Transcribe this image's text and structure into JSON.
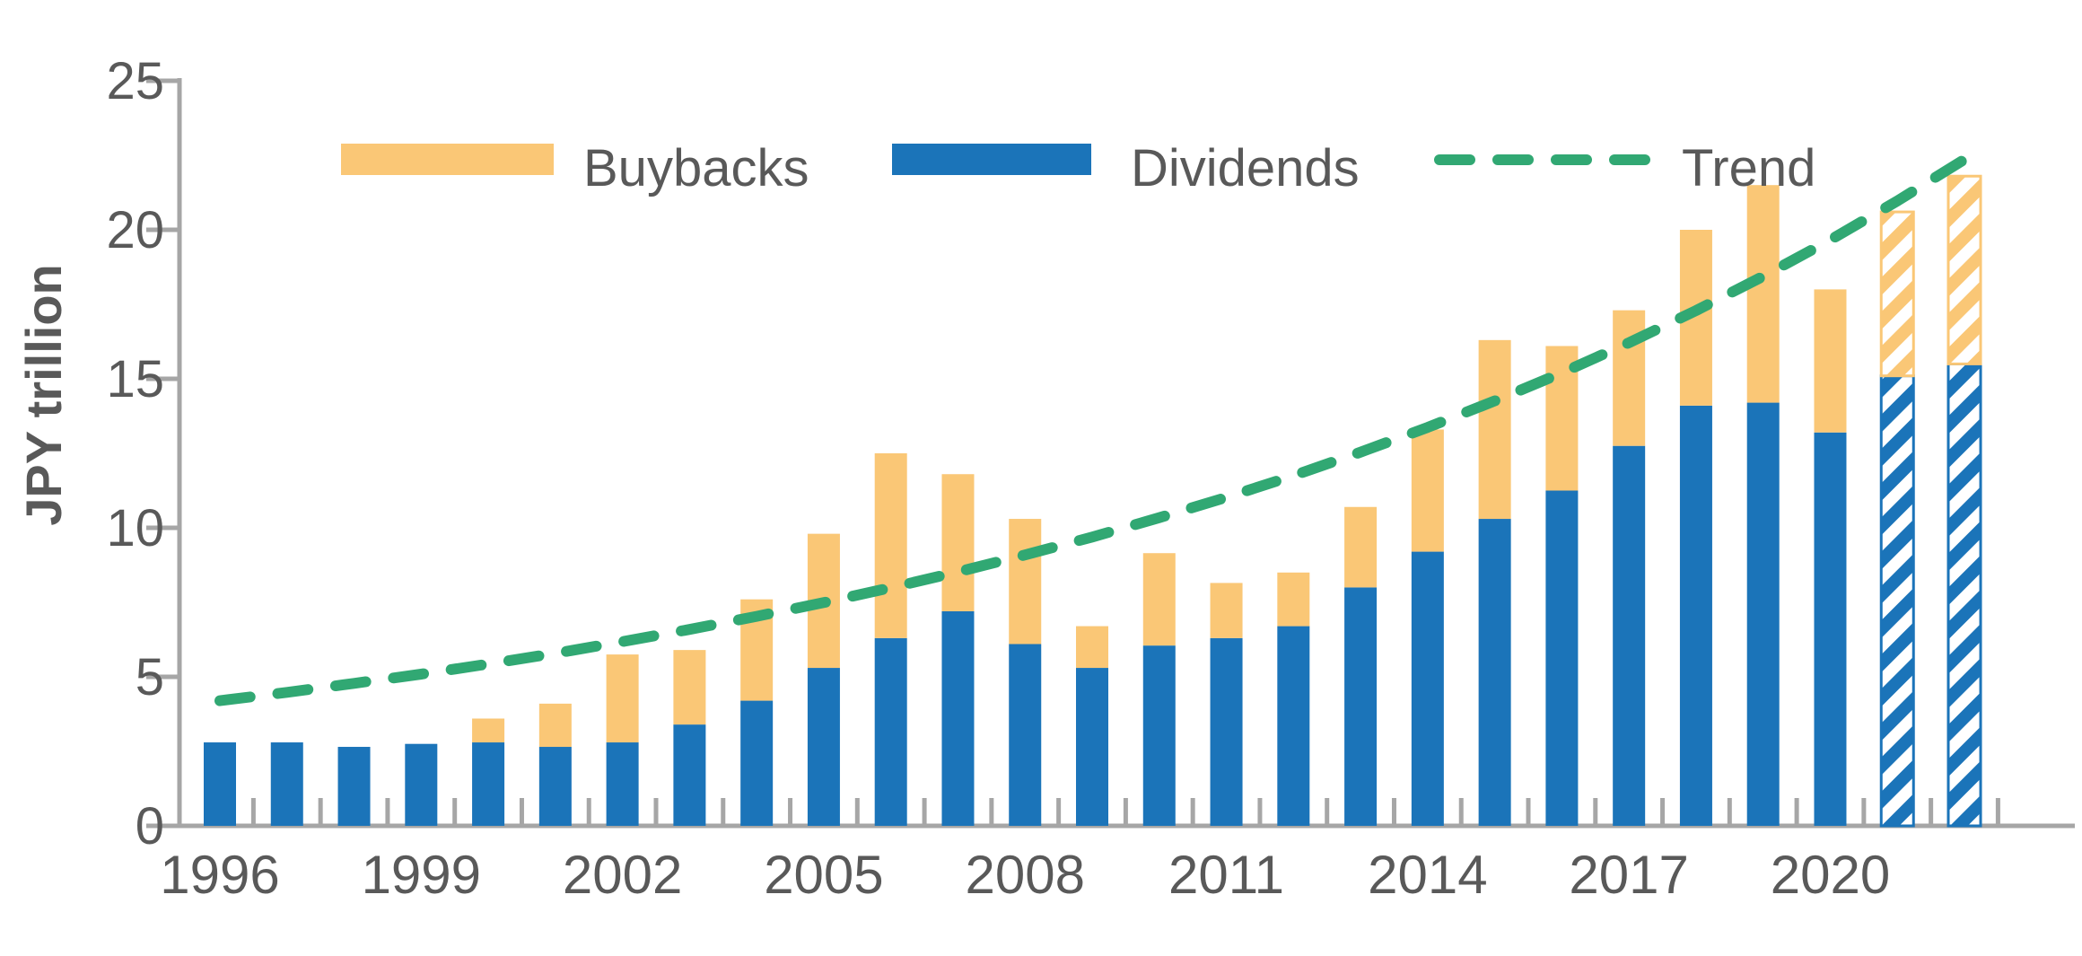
{
  "chart_data": {
    "type": "bar",
    "stacked": true,
    "title": "",
    "ylabel": "JPY trillion",
    "xlabel": "",
    "ylim": [
      0,
      25
    ],
    "y_ticks": [
      0,
      5,
      10,
      15,
      20,
      25
    ],
    "x_tick_labels": [
      "1996",
      "1999",
      "2002",
      "2005",
      "2008",
      "2011",
      "2014",
      "2017",
      "2020"
    ],
    "grid": "off",
    "legend_position": "top",
    "legend": {
      "buybacks": "Buybacks",
      "dividends": "Dividends",
      "trend": "Trend"
    },
    "categories": [
      1996,
      1997,
      1998,
      1999,
      2000,
      2001,
      2002,
      2003,
      2004,
      2005,
      2006,
      2007,
      2008,
      2009,
      2010,
      2011,
      2012,
      2013,
      2014,
      2015,
      2016,
      2017,
      2018,
      2019,
      2020,
      2021,
      2022
    ],
    "series": [
      {
        "name": "Dividends",
        "color": "#1b74b9",
        "values": [
          2.8,
          2.8,
          2.65,
          2.75,
          2.8,
          2.65,
          2.8,
          3.4,
          4.2,
          5.3,
          6.3,
          7.2,
          6.1,
          5.3,
          6.05,
          6.3,
          6.7,
          8.0,
          9.2,
          10.3,
          11.25,
          12.75,
          14.1,
          14.2,
          13.2,
          15.1,
          15.5
        ]
      },
      {
        "name": "Buybacks",
        "color": "#fac776",
        "values": [
          0,
          0,
          0,
          0,
          0.8,
          1.45,
          2.95,
          2.5,
          3.4,
          4.5,
          6.2,
          4.6,
          4.2,
          1.4,
          3.1,
          1.85,
          1.8,
          2.7,
          4.1,
          6.0,
          4.85,
          4.55,
          5.9,
          7.3,
          4.8,
          5.5,
          6.3
        ]
      }
    ],
    "trend_line": {
      "name": "Trend",
      "color": "#31a873",
      "style": "dashed",
      "values": [
        4.2,
        4.48,
        4.78,
        5.09,
        5.43,
        5.79,
        6.18,
        6.59,
        7.03,
        7.49,
        7.99,
        8.52,
        9.09,
        9.69,
        10.34,
        11.02,
        11.75,
        12.54,
        13.37,
        14.26,
        15.2,
        16.21,
        17.29,
        18.44,
        19.66,
        20.97,
        22.36
      ]
    },
    "forecast_years": [
      2021,
      2022
    ],
    "forecast_style": "diagonal-hatch"
  },
  "colors": {
    "dividends_blue": "#1b74b9",
    "buybacks_yellow": "#fac776",
    "trend_green": "#31a873",
    "axis_gray": "#a6a6a6",
    "text_gray": "#595959",
    "background": "#ffffff"
  }
}
